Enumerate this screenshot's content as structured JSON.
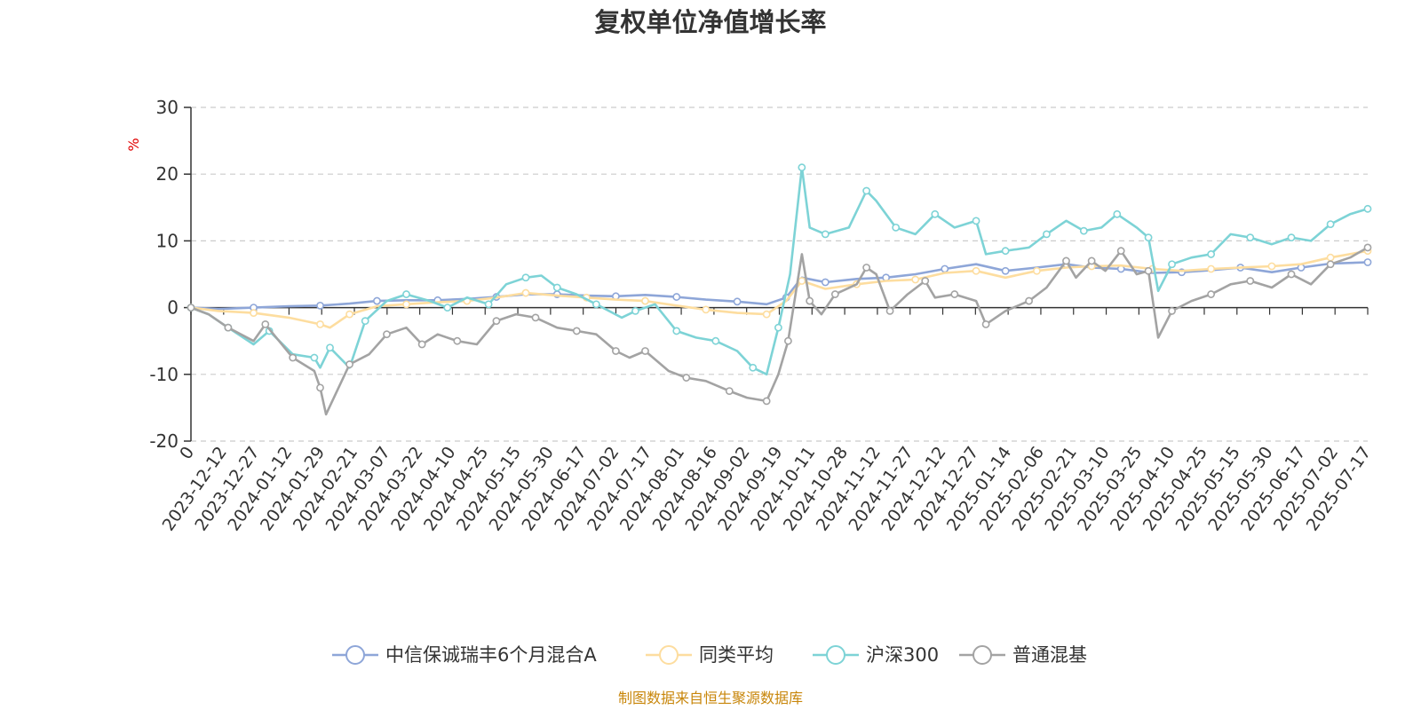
{
  "chart_data": {
    "type": "line",
    "title": "复权单位净值增长率",
    "ylabel": "%",
    "ylim": [
      -20,
      30
    ],
    "yticks": [
      -20,
      -10,
      0,
      10,
      20,
      30
    ],
    "x_range": [
      "2023-12-01",
      "2025-07-24"
    ],
    "xtick_labels": [
      "0",
      "2023-12-12",
      "2023-12-27",
      "2024-01-12",
      "2024-01-29",
      "2024-02-21",
      "2024-03-07",
      "2024-03-22",
      "2024-04-10",
      "2024-04-25",
      "2024-05-15",
      "2024-05-30",
      "2024-06-17",
      "2024-07-02",
      "2024-07-17",
      "2024-08-01",
      "2024-08-16",
      "2024-09-02",
      "2024-09-19",
      "2024-10-11",
      "2024-10-28",
      "2024-11-12",
      "2024-11-27",
      "2024-12-12",
      "2024-12-27",
      "2025-01-14",
      "2025-02-06",
      "2025-02-21",
      "2025-03-10",
      "2025-03-25",
      "2025-04-10",
      "2025-04-25",
      "2025-05-15",
      "2025-05-30",
      "2025-06-17",
      "2025-07-02",
      "2025-07-17"
    ],
    "grid": "horizontal-dashed",
    "legend_position": "bottom",
    "series": [
      {
        "name": "中信保诚瑞丰6个月混合A",
        "color": "#8ea6d8",
        "points": [
          [
            "2023-12-01",
            0
          ],
          [
            "2023-12-15",
            -0.2
          ],
          [
            "2024-01-02",
            0
          ],
          [
            "2024-01-20",
            0.2
          ],
          [
            "2024-02-05",
            0.3
          ],
          [
            "2024-02-20",
            0.6
          ],
          [
            "2024-03-05",
            1.0
          ],
          [
            "2024-03-20",
            1.1
          ],
          [
            "2024-04-05",
            1.1
          ],
          [
            "2024-04-20",
            1.3
          ],
          [
            "2024-05-05",
            1.6
          ],
          [
            "2024-05-20",
            2.0
          ],
          [
            "2024-06-05",
            2.0
          ],
          [
            "2024-06-20",
            1.8
          ],
          [
            "2024-07-05",
            1.7
          ],
          [
            "2024-07-20",
            1.9
          ],
          [
            "2024-08-05",
            1.6
          ],
          [
            "2024-08-20",
            1.2
          ],
          [
            "2024-09-05",
            0.9
          ],
          [
            "2024-09-20",
            0.5
          ],
          [
            "2024-09-30",
            1.5
          ],
          [
            "2024-10-08",
            4.5
          ],
          [
            "2024-10-20",
            3.8
          ],
          [
            "2024-11-05",
            4.3
          ],
          [
            "2024-11-20",
            4.5
          ],
          [
            "2024-12-05",
            5.0
          ],
          [
            "2024-12-20",
            5.8
          ],
          [
            "2025-01-05",
            6.5
          ],
          [
            "2025-01-20",
            5.5
          ],
          [
            "2025-02-05",
            6.0
          ],
          [
            "2025-02-20",
            6.5
          ],
          [
            "2025-03-05",
            6.0
          ],
          [
            "2025-03-20",
            5.8
          ],
          [
            "2025-04-05",
            5.2
          ],
          [
            "2025-04-20",
            5.3
          ],
          [
            "2025-05-05",
            5.6
          ],
          [
            "2025-05-20",
            6.0
          ],
          [
            "2025-06-05",
            5.3
          ],
          [
            "2025-06-20",
            6.0
          ],
          [
            "2025-07-05",
            6.6
          ],
          [
            "2025-07-24",
            6.8
          ]
        ]
      },
      {
        "name": "同类平均",
        "color": "#fddd9f",
        "points": [
          [
            "2023-12-01",
            0
          ],
          [
            "2023-12-15",
            -0.5
          ],
          [
            "2024-01-02",
            -0.8
          ],
          [
            "2024-01-20",
            -1.5
          ],
          [
            "2024-02-05",
            -2.5
          ],
          [
            "2024-02-10",
            -3.0
          ],
          [
            "2024-02-20",
            -1.0
          ],
          [
            "2024-03-05",
            0.2
          ],
          [
            "2024-03-20",
            0.5
          ],
          [
            "2024-04-05",
            0.8
          ],
          [
            "2024-04-20",
            1.0
          ],
          [
            "2024-05-05",
            1.5
          ],
          [
            "2024-05-20",
            2.2
          ],
          [
            "2024-06-05",
            1.8
          ],
          [
            "2024-06-20",
            1.5
          ],
          [
            "2024-07-05",
            1.2
          ],
          [
            "2024-07-20",
            1.0
          ],
          [
            "2024-08-05",
            0.3
          ],
          [
            "2024-08-20",
            -0.3
          ],
          [
            "2024-09-05",
            -0.8
          ],
          [
            "2024-09-20",
            -1.0
          ],
          [
            "2024-09-30",
            1.0
          ],
          [
            "2024-10-08",
            4.0
          ],
          [
            "2024-10-20",
            2.8
          ],
          [
            "2024-11-05",
            3.5
          ],
          [
            "2024-11-20",
            4.0
          ],
          [
            "2024-12-05",
            4.2
          ],
          [
            "2024-12-20",
            5.2
          ],
          [
            "2025-01-05",
            5.5
          ],
          [
            "2025-01-20",
            4.5
          ],
          [
            "2025-02-05",
            5.5
          ],
          [
            "2025-02-20",
            6.0
          ],
          [
            "2025-03-05",
            6.2
          ],
          [
            "2025-03-20",
            6.3
          ],
          [
            "2025-04-05",
            5.8
          ],
          [
            "2025-04-20",
            5.5
          ],
          [
            "2025-05-05",
            5.8
          ],
          [
            "2025-05-20",
            6.0
          ],
          [
            "2025-06-05",
            6.2
          ],
          [
            "2025-06-20",
            6.5
          ],
          [
            "2025-07-05",
            7.5
          ],
          [
            "2025-07-24",
            8.5
          ]
        ]
      },
      {
        "name": "沪深300",
        "color": "#7dd3d6",
        "points": [
          [
            "2023-12-01",
            0
          ],
          [
            "2023-12-10",
            -1.0
          ],
          [
            "2023-12-20",
            -3.0
          ],
          [
            "2024-01-02",
            -5.5
          ],
          [
            "2024-01-10",
            -3.5
          ],
          [
            "2024-01-22",
            -7.0
          ],
          [
            "2024-02-02",
            -7.5
          ],
          [
            "2024-02-05",
            -9.0
          ],
          [
            "2024-02-10",
            -6.0
          ],
          [
            "2024-02-20",
            -9.0
          ],
          [
            "2024-02-28",
            -2.0
          ],
          [
            "2024-03-10",
            1.0
          ],
          [
            "2024-03-20",
            2.0
          ],
          [
            "2024-04-01",
            1.0
          ],
          [
            "2024-04-10",
            0.0
          ],
          [
            "2024-04-20",
            1.5
          ],
          [
            "2024-05-01",
            0.5
          ],
          [
            "2024-05-10",
            3.5
          ],
          [
            "2024-05-20",
            4.5
          ],
          [
            "2024-05-28",
            4.8
          ],
          [
            "2024-06-05",
            3.0
          ],
          [
            "2024-06-15",
            2.0
          ],
          [
            "2024-06-25",
            0.5
          ],
          [
            "2024-07-08",
            -1.5
          ],
          [
            "2024-07-15",
            -0.5
          ],
          [
            "2024-07-25",
            0.5
          ],
          [
            "2024-08-05",
            -3.5
          ],
          [
            "2024-08-15",
            -4.5
          ],
          [
            "2024-08-25",
            -5.0
          ],
          [
            "2024-09-05",
            -6.5
          ],
          [
            "2024-09-13",
            -9.0
          ],
          [
            "2024-09-20",
            -10.0
          ],
          [
            "2024-09-26",
            -3.0
          ],
          [
            "2024-10-02",
            5.0
          ],
          [
            "2024-10-08",
            21.0
          ],
          [
            "2024-10-12",
            12.0
          ],
          [
            "2024-10-20",
            11.0
          ],
          [
            "2024-11-01",
            12.0
          ],
          [
            "2024-11-10",
            17.5
          ],
          [
            "2024-11-15",
            16.0
          ],
          [
            "2024-11-25",
            12.0
          ],
          [
            "2024-12-05",
            11.0
          ],
          [
            "2024-12-15",
            14.0
          ],
          [
            "2024-12-25",
            12.0
          ],
          [
            "2025-01-05",
            13.0
          ],
          [
            "2025-01-10",
            8.0
          ],
          [
            "2025-01-20",
            8.5
          ],
          [
            "2025-02-01",
            9.0
          ],
          [
            "2025-02-10",
            11.0
          ],
          [
            "2025-02-20",
            13.0
          ],
          [
            "2025-03-01",
            11.5
          ],
          [
            "2025-03-10",
            12.0
          ],
          [
            "2025-03-18",
            14.0
          ],
          [
            "2025-03-28",
            12.0
          ],
          [
            "2025-04-03",
            10.5
          ],
          [
            "2025-04-08",
            2.5
          ],
          [
            "2025-04-15",
            6.5
          ],
          [
            "2025-04-25",
            7.5
          ],
          [
            "2025-05-05",
            8.0
          ],
          [
            "2025-05-15",
            11.0
          ],
          [
            "2025-05-25",
            10.5
          ],
          [
            "2025-06-05",
            9.5
          ],
          [
            "2025-06-15",
            10.5
          ],
          [
            "2025-06-25",
            10.0
          ],
          [
            "2025-07-05",
            12.5
          ],
          [
            "2025-07-15",
            14.0
          ],
          [
            "2025-07-24",
            14.8
          ]
        ]
      },
      {
        "name": "普通混基",
        "color": "#a3a3a3",
        "points": [
          [
            "2023-12-01",
            0
          ],
          [
            "2023-12-10",
            -1.0
          ],
          [
            "2023-12-20",
            -3.0
          ],
          [
            "2024-01-02",
            -5.0
          ],
          [
            "2024-01-08",
            -2.5
          ],
          [
            "2024-01-15",
            -5.0
          ],
          [
            "2024-01-22",
            -7.5
          ],
          [
            "2024-02-02",
            -9.5
          ],
          [
            "2024-02-05",
            -12.0
          ],
          [
            "2024-02-08",
            -16.0
          ],
          [
            "2024-02-20",
            -8.5
          ],
          [
            "2024-03-01",
            -7.0
          ],
          [
            "2024-03-10",
            -4.0
          ],
          [
            "2024-03-20",
            -3.0
          ],
          [
            "2024-03-28",
            -5.5
          ],
          [
            "2024-04-05",
            -4.0
          ],
          [
            "2024-04-15",
            -5.0
          ],
          [
            "2024-04-25",
            -5.5
          ],
          [
            "2024-05-05",
            -2.0
          ],
          [
            "2024-05-15",
            -1.0
          ],
          [
            "2024-05-25",
            -1.5
          ],
          [
            "2024-06-05",
            -3.0
          ],
          [
            "2024-06-15",
            -3.5
          ],
          [
            "2024-06-25",
            -4.0
          ],
          [
            "2024-07-05",
            -6.5
          ],
          [
            "2024-07-12",
            -7.5
          ],
          [
            "2024-07-20",
            -6.5
          ],
          [
            "2024-08-01",
            -9.5
          ],
          [
            "2024-08-10",
            -10.5
          ],
          [
            "2024-08-20",
            -11.0
          ],
          [
            "2024-09-01",
            -12.5
          ],
          [
            "2024-09-10",
            -13.5
          ],
          [
            "2024-09-20",
            -14.0
          ],
          [
            "2024-09-26",
            -10.0
          ],
          [
            "2024-10-01",
            -5.0
          ],
          [
            "2024-10-08",
            8.0
          ],
          [
            "2024-10-12",
            1.0
          ],
          [
            "2024-10-18",
            -1.0
          ],
          [
            "2024-10-25",
            2.0
          ],
          [
            "2024-11-05",
            3.5
          ],
          [
            "2024-11-10",
            6.0
          ],
          [
            "2024-11-15",
            5.0
          ],
          [
            "2024-11-22",
            -0.5
          ],
          [
            "2024-12-01",
            2.0
          ],
          [
            "2024-12-10",
            4.0
          ],
          [
            "2024-12-15",
            1.5
          ],
          [
            "2024-12-25",
            2.0
          ],
          [
            "2025-01-05",
            1.0
          ],
          [
            "2025-01-10",
            -2.5
          ],
          [
            "2025-01-20",
            -0.5
          ],
          [
            "2025-02-01",
            1.0
          ],
          [
            "2025-02-10",
            3.0
          ],
          [
            "2025-02-20",
            7.0
          ],
          [
            "2025-02-25",
            4.5
          ],
          [
            "2025-03-05",
            7.0
          ],
          [
            "2025-03-12",
            5.5
          ],
          [
            "2025-03-20",
            8.5
          ],
          [
            "2025-03-28",
            5.0
          ],
          [
            "2025-04-03",
            5.5
          ],
          [
            "2025-04-08",
            -4.5
          ],
          [
            "2025-04-15",
            -0.5
          ],
          [
            "2025-04-25",
            1.0
          ],
          [
            "2025-05-05",
            2.0
          ],
          [
            "2025-05-15",
            3.5
          ],
          [
            "2025-05-25",
            4.0
          ],
          [
            "2025-06-05",
            3.0
          ],
          [
            "2025-06-15",
            5.0
          ],
          [
            "2025-06-25",
            3.5
          ],
          [
            "2025-07-05",
            6.5
          ],
          [
            "2025-07-15",
            7.5
          ],
          [
            "2025-07-24",
            9.0
          ]
        ]
      }
    ]
  },
  "source_note": "制图数据来自恒生聚源数据库"
}
